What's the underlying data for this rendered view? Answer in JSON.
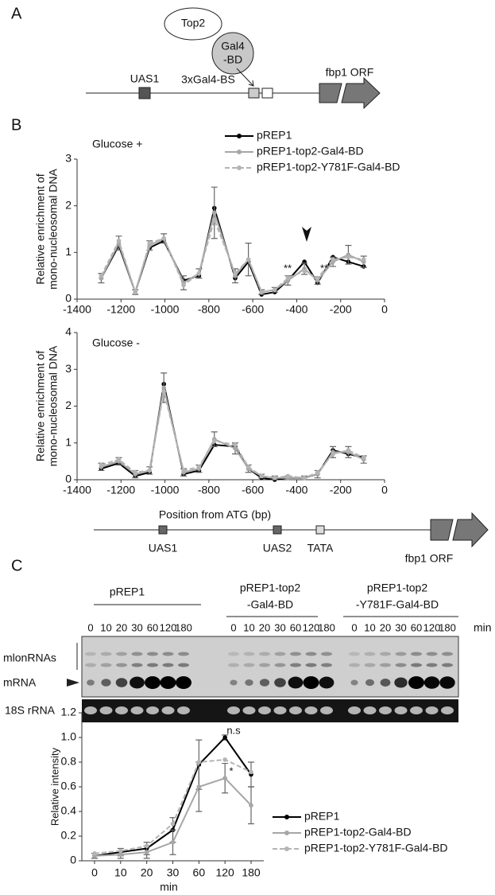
{
  "panels": {
    "a": "A",
    "b": "B",
    "c": "C"
  },
  "diagram_a": {
    "top2": "Top2",
    "gal4": [
      "Gal4",
      "-BD"
    ],
    "uas1": "UAS1",
    "binding_sites": "3xGal4-BS",
    "orf": "fbp1 ORF"
  },
  "diagram_b": {
    "uas1": "UAS1",
    "uas2": "UAS2",
    "tata": "TATA",
    "orf": "fbp1 ORF"
  },
  "blot": {
    "groups": [
      [
        "pREP1"
      ],
      [
        "pREP1-top2",
        "-Gal4-BD"
      ],
      [
        "pREP1-top2",
        "-Y781F-Gal4-BD"
      ]
    ],
    "times": [
      "0",
      "10",
      "20",
      "30",
      "60",
      "120",
      "180"
    ],
    "unit": "min",
    "rows": {
      "lnc": "mlonRNAs",
      "mrna": "mRNA",
      "rrna": "18S rRNA"
    }
  },
  "chart_data": [
    {
      "type": "line",
      "title": "Glucose +",
      "ylabel": [
        "Relative enrichment of",
        "mono-nucleosomal DNA"
      ],
      "x": [
        -1290,
        -1210,
        -1135,
        -1070,
        -1005,
        -915,
        -845,
        -775,
        -680,
        -620,
        -560,
        -500,
        -440,
        -365,
        -305,
        -235,
        -165,
        -95
      ],
      "xlim": [
        -1400,
        0
      ],
      "xticks": [
        -1400,
        -1200,
        -1000,
        -800,
        -600,
        -400,
        -200,
        0
      ],
      "ylim": [
        0,
        3
      ],
      "yticks": [
        0,
        1,
        2,
        3
      ],
      "legend": true,
      "annotations": [
        "**",
        "**"
      ],
      "series": [
        {
          "name": "pREP1",
          "color": "#000000",
          "line_style": "solid",
          "values": [
            0.45,
            1.15,
            0.15,
            1.1,
            1.25,
            0.4,
            0.5,
            1.95,
            0.45,
            0.8,
            0.1,
            0.15,
            0.4,
            0.8,
            0.35,
            0.9,
            0.8,
            0.7
          ]
        },
        {
          "name": "pREP1-top2-Gal4-BD",
          "color": "#a6a6a6",
          "line_style": "solid",
          "values": [
            0.45,
            1.2,
            0.15,
            1.15,
            1.3,
            0.35,
            0.55,
            1.85,
            0.5,
            0.85,
            0.15,
            0.2,
            0.4,
            0.65,
            0.4,
            0.8,
            0.95,
            0.8
          ],
          "errors": [
            0.1,
            0.15,
            0.05,
            0.1,
            0.1,
            0.15,
            0.1,
            0.55,
            0.15,
            0.35,
            0.05,
            0.05,
            0.1,
            0.12,
            0.08,
            0.1,
            0.2,
            0.12
          ]
        },
        {
          "name": "pREP1-top2-Y781F-Gal4-BD",
          "color": "#b4b4b4",
          "line_style": "dashed",
          "values": [
            0.5,
            1.25,
            0.15,
            1.2,
            1.3,
            0.3,
            0.55,
            1.7,
            0.55,
            0.85,
            0.15,
            0.2,
            0.45,
            0.6,
            0.45,
            0.85,
            0.9,
            0.85
          ]
        }
      ]
    },
    {
      "type": "line",
      "title": "Glucose -",
      "ylabel": [
        "Relative enrichment of",
        "mono-nucleosomal DNA"
      ],
      "xlabel": "Position from ATG (bp)",
      "x": [
        -1290,
        -1210,
        -1135,
        -1070,
        -1005,
        -915,
        -845,
        -775,
        -680,
        -620,
        -560,
        -500,
        -440,
        -365,
        -305,
        -235,
        -165,
        -95
      ],
      "xlim": [
        -1400,
        0
      ],
      "xticks": [
        -1400,
        -1200,
        -1000,
        -800,
        -600,
        -400,
        -200,
        0
      ],
      "ylim": [
        0,
        4
      ],
      "yticks": [
        0,
        1,
        2,
        3,
        4
      ],
      "legend": false,
      "series": [
        {
          "name": "pREP1",
          "color": "#000000",
          "line_style": "solid",
          "values": [
            0.3,
            0.45,
            0.1,
            0.2,
            2.6,
            0.15,
            0.25,
            0.95,
            0.9,
            0.3,
            0.05,
            0.0,
            0.05,
            0.05,
            0.15,
            0.8,
            0.7,
            0.6
          ]
        },
        {
          "name": "pREP1-top2-Gal4-BD",
          "color": "#a6a6a6",
          "line_style": "solid",
          "values": [
            0.35,
            0.5,
            0.15,
            0.25,
            2.5,
            0.2,
            0.3,
            1.1,
            0.85,
            0.3,
            0.1,
            0.05,
            0.05,
            0.05,
            0.15,
            0.75,
            0.75,
            0.55
          ],
          "errors": [
            0.1,
            0.1,
            0.1,
            0.1,
            0.4,
            0.1,
            0.1,
            0.2,
            0.15,
            0.1,
            0.05,
            0.05,
            0.05,
            0.05,
            0.1,
            0.15,
            0.15,
            0.1
          ]
        },
        {
          "name": "pREP1-top2-Y781F-Gal4-BD",
          "color": "#b4b4b4",
          "line_style": "dashed",
          "values": [
            0.4,
            0.55,
            0.2,
            0.25,
            2.4,
            0.25,
            0.35,
            1.05,
            0.95,
            0.35,
            0.1,
            0.05,
            0.1,
            0.05,
            0.2,
            0.7,
            0.8,
            0.6
          ]
        }
      ]
    },
    {
      "type": "line",
      "ylabel": "Relative intensity",
      "xlabel": "min",
      "categories": [
        "0",
        "10",
        "20",
        "30",
        "60",
        "120",
        "180"
      ],
      "ylim": [
        0,
        1.2
      ],
      "yticks": [
        0,
        0.2,
        0.4,
        0.6,
        0.8,
        {
          "value": 1,
          "label": "1.0"
        },
        1.2
      ],
      "legend": true,
      "annotations": [
        "n.s",
        "*"
      ],
      "series": [
        {
          "name": "pREP1",
          "color": "#000000",
          "line_style": "solid",
          "values": [
            0.04,
            0.07,
            0.1,
            0.25,
            0.78,
            1.0,
            0.7
          ],
          "errors": [
            0.02,
            0.03,
            0.05,
            0.1,
            0.2,
            0.02,
            0.1
          ]
        },
        {
          "name": "pREP1-top2-Gal4-BD",
          "color": "#a6a6a6",
          "line_style": "solid",
          "values": [
            0.04,
            0.05,
            0.07,
            0.15,
            0.6,
            0.67,
            0.45
          ],
          "errors": [
            0.02,
            0.03,
            0.05,
            0.1,
            0.2,
            0.12,
            0.15
          ]
        },
        {
          "name": "pREP1-top2-Y781F-Gal4-BD",
          "color": "#b4b4b4",
          "line_style": "dashed",
          "values": [
            0.06,
            0.08,
            0.12,
            0.3,
            0.8,
            0.82,
            0.72
          ]
        }
      ]
    }
  ]
}
